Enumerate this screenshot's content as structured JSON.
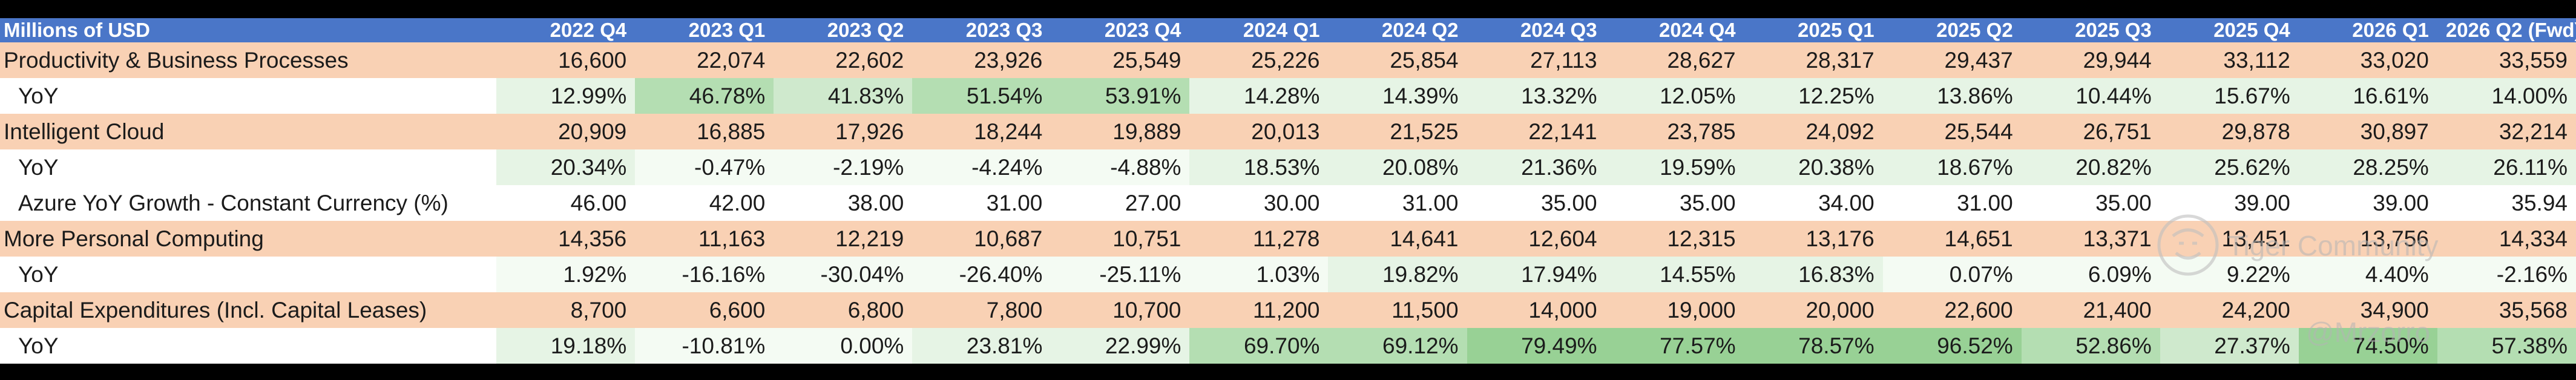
{
  "table": {
    "corner_label": "Millions of USD",
    "columns": [
      "2022 Q4",
      "2023 Q1",
      "2023 Q2",
      "2023 Q3",
      "2023 Q4",
      "2024 Q1",
      "2024 Q2",
      "2024 Q3",
      "2024 Q4",
      "2025 Q1",
      "2025 Q2",
      "2025 Q3",
      "2025 Q4",
      "2026 Q1",
      "2026 Q2 (Fwd)"
    ],
    "rows": [
      {
        "label": "Productivity & Business Processes",
        "type": "seg",
        "cells": [
          "16,600",
          "22,074",
          "22,602",
          "23,926",
          "25,549",
          "25,226",
          "25,854",
          "27,113",
          "28,627",
          "28,317",
          "29,437",
          "29,944",
          "33,112",
          "33,020",
          "33,559"
        ]
      },
      {
        "label": "YoY",
        "type": "yoy",
        "cells": [
          "12.99%",
          "46.78%",
          "41.83%",
          "51.54%",
          "53.91%",
          "14.28%",
          "14.39%",
          "13.32%",
          "12.05%",
          "12.25%",
          "13.86%",
          "10.44%",
          "15.67%",
          "16.61%",
          "14.00%"
        ],
        "shade": [
          "g1",
          "g3",
          "g2",
          "g3",
          "g3",
          "g1",
          "g1",
          "g1",
          "g1",
          "g1",
          "g1",
          "g1",
          "g1",
          "g1",
          "g1"
        ]
      },
      {
        "label": "Intelligent Cloud",
        "type": "seg",
        "cells": [
          "20,909",
          "16,885",
          "17,926",
          "18,244",
          "19,889",
          "20,013",
          "21,525",
          "22,141",
          "23,785",
          "24,092",
          "25,544",
          "26,751",
          "29,878",
          "30,897",
          "32,214"
        ]
      },
      {
        "label": "YoY",
        "type": "yoy",
        "cells": [
          "20.34%",
          "-0.47%",
          "-2.19%",
          "-4.24%",
          "-4.88%",
          "18.53%",
          "20.08%",
          "21.36%",
          "19.59%",
          "20.38%",
          "18.67%",
          "20.82%",
          "25.62%",
          "28.25%",
          "26.11%"
        ],
        "shade": [
          "g1",
          "neg",
          "neg",
          "neg",
          "neg",
          "g1",
          "g1",
          "g1",
          "g1",
          "g1",
          "g1",
          "g1",
          "g1",
          "g1",
          "g1"
        ]
      },
      {
        "label": "Azure YoY Growth - Constant Currency (%)",
        "type": "plain",
        "cells": [
          "46.00",
          "42.00",
          "38.00",
          "31.00",
          "27.00",
          "30.00",
          "31.00",
          "35.00",
          "35.00",
          "34.00",
          "31.00",
          "35.00",
          "39.00",
          "39.00",
          "35.94"
        ],
        "shade": [
          "",
          "",
          "",
          "",
          "",
          "",
          "",
          "",
          "",
          "",
          "",
          "",
          "",
          "",
          ""
        ]
      },
      {
        "label": "More Personal Computing",
        "type": "seg",
        "cells": [
          "14,356",
          "11,163",
          "12,219",
          "10,687",
          "10,751",
          "11,278",
          "14,641",
          "12,604",
          "12,315",
          "13,176",
          "14,651",
          "13,371",
          "13,451",
          "13,756",
          "14,334"
        ]
      },
      {
        "label": "YoY",
        "type": "yoy",
        "cells": [
          "1.92%",
          "-16.16%",
          "-30.04%",
          "-26.40%",
          "-25.11%",
          "1.03%",
          "19.82%",
          "17.94%",
          "14.55%",
          "16.83%",
          "0.07%",
          "6.09%",
          "9.22%",
          "4.40%",
          "-2.16%"
        ],
        "shade": [
          "neg",
          "neg",
          "neg",
          "neg",
          "neg",
          "neg",
          "g1",
          "g1",
          "g1",
          "g1",
          "neg",
          "neg",
          "neg",
          "neg",
          "neg"
        ]
      },
      {
        "label": "Capital Expenditures (Incl. Capital Leases)",
        "type": "seg",
        "cells": [
          "8,700",
          "6,600",
          "6,800",
          "7,800",
          "10,700",
          "11,200",
          "11,500",
          "14,000",
          "19,000",
          "20,000",
          "22,600",
          "21,400",
          "24,200",
          "34,900",
          "35,568"
        ]
      },
      {
        "label": "YoY",
        "type": "yoy",
        "cells": [
          "19.18%",
          "-10.81%",
          "0.00%",
          "23.81%",
          "22.99%",
          "69.70%",
          "69.12%",
          "79.49%",
          "77.57%",
          "78.57%",
          "96.52%",
          "52.86%",
          "27.37%",
          "74.50%",
          "57.38%"
        ],
        "shade": [
          "g1",
          "neg",
          "neg",
          "g1",
          "g1",
          "g3",
          "g3",
          "g4",
          "g4",
          "g4",
          "g4",
          "g3",
          "g2",
          "g4",
          "g3"
        ]
      }
    ]
  },
  "watermark": {
    "line1": "Tiger Community",
    "line2": "@Mrzorro"
  }
}
